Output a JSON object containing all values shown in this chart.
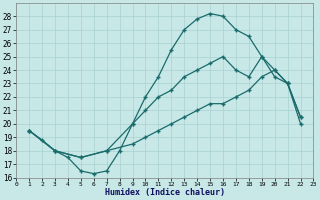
{
  "xlabel": "Humidex (Indice chaleur)",
  "background_color": "#c8e8e8",
  "grid_color": "#a8d0d0",
  "line_color": "#1a6b6b",
  "xlim": [
    0,
    23
  ],
  "ylim": [
    16,
    29
  ],
  "xticks": [
    0,
    1,
    2,
    3,
    4,
    5,
    6,
    7,
    8,
    9,
    10,
    11,
    12,
    13,
    14,
    15,
    16,
    17,
    18,
    19,
    20,
    21,
    22,
    23
  ],
  "yticks": [
    16,
    17,
    18,
    19,
    20,
    21,
    22,
    23,
    24,
    25,
    26,
    27,
    28
  ],
  "curve1_x": [
    1,
    2,
    3,
    4,
    5,
    6,
    7,
    8,
    9,
    10,
    11,
    12,
    13,
    14,
    15,
    16,
    17,
    18,
    19,
    20,
    21,
    22
  ],
  "curve1_y": [
    19.5,
    18.8,
    18.0,
    17.5,
    16.5,
    16.3,
    16.5,
    18.0,
    20.0,
    22.0,
    23.5,
    25.5,
    27.0,
    27.8,
    28.2,
    28.0,
    27.0,
    26.5,
    25.0,
    23.5,
    23.0,
    20.0
  ],
  "curve2_x": [
    1,
    3,
    5,
    7,
    9,
    10,
    11,
    12,
    13,
    14,
    15,
    16,
    17,
    18,
    19,
    20,
    21,
    22
  ],
  "curve2_y": [
    19.5,
    18.0,
    17.5,
    18.0,
    20.0,
    21.0,
    22.0,
    22.5,
    23.5,
    24.0,
    24.5,
    25.0,
    24.0,
    23.5,
    25.0,
    24.0,
    23.0,
    20.5
  ],
  "curve3_x": [
    1,
    3,
    5,
    7,
    9,
    10,
    11,
    12,
    13,
    14,
    15,
    16,
    17,
    18,
    19,
    20,
    21,
    22
  ],
  "curve3_y": [
    19.5,
    18.0,
    17.5,
    18.0,
    18.5,
    19.0,
    19.5,
    20.0,
    20.5,
    21.0,
    21.5,
    21.5,
    22.0,
    22.5,
    23.5,
    24.0,
    23.0,
    20.5
  ]
}
